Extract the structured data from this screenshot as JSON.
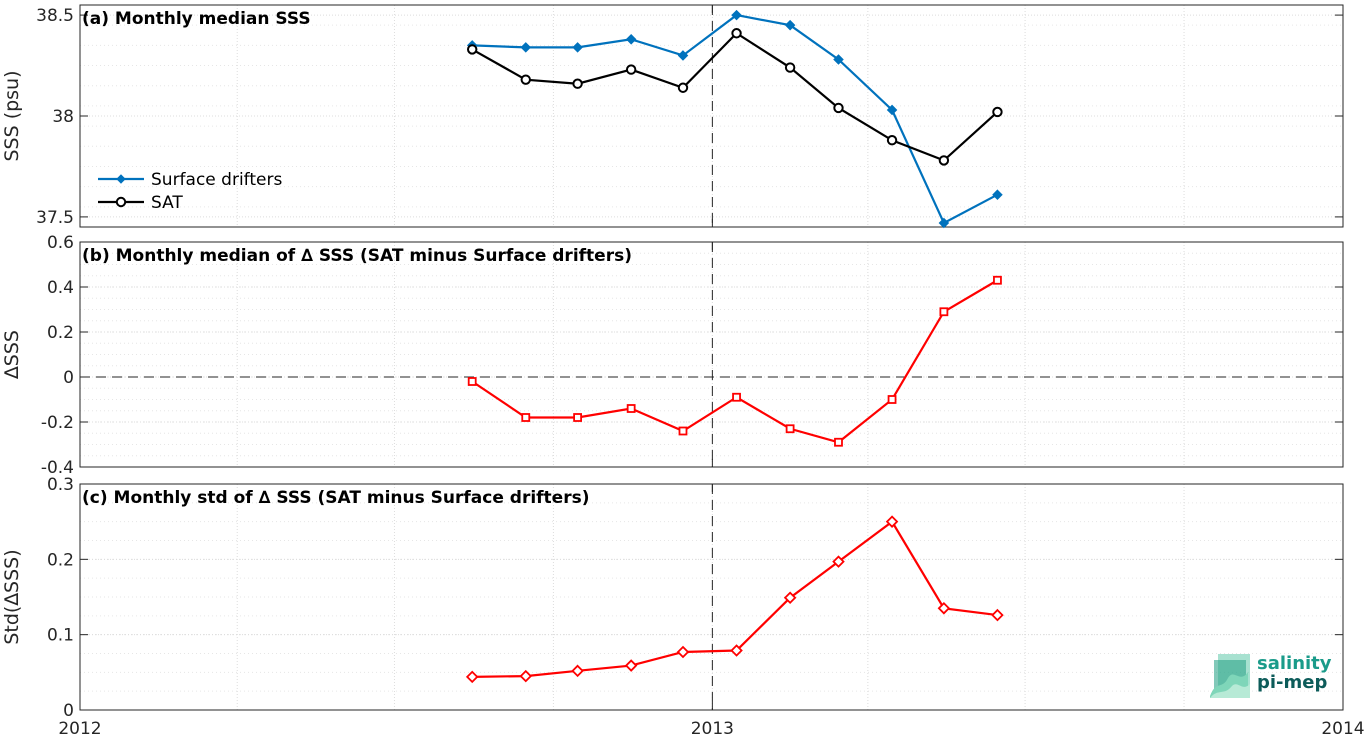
{
  "chart_data": [
    {
      "type": "line",
      "title": "(a) Monthly median SSS",
      "ylabel": "SSS (psu)",
      "xlabel": "",
      "xlim": [
        "2012-01-01",
        "2014-01-01"
      ],
      "ylim": [
        37.45,
        38.55
      ],
      "yticks": [
        37.5,
        38,
        38.5
      ],
      "ytick_labels": [
        "37.5",
        "38",
        "38.5"
      ],
      "x": [
        "2012-08-15",
        "2012-09-15",
        "2012-10-15",
        "2012-11-15",
        "2012-12-15",
        "2013-01-15",
        "2013-02-15",
        "2013-03-15",
        "2013-04-15",
        "2013-05-15",
        "2013-06-15",
        "2013-07-15"
      ],
      "series": [
        {
          "name": "Surface drifters",
          "color": "#0072BD",
          "marker": "diamond",
          "values": [
            38.35,
            38.34,
            38.34,
            38.38,
            38.3,
            38.5,
            38.45,
            38.28,
            38.03,
            37.47,
            37.61,
            null
          ]
        },
        {
          "name": "SAT",
          "color": "#000000",
          "marker": "circle",
          "values": [
            38.33,
            38.18,
            38.16,
            38.23,
            38.14,
            38.41,
            38.24,
            38.04,
            37.88,
            37.78,
            38.02,
            null
          ]
        }
      ],
      "legend_position": "lower-left",
      "grid": true,
      "vline": "2013-01-01"
    },
    {
      "type": "line",
      "title": "(b) Monthly median of ∆ SSS (SAT minus Surface drifters)",
      "ylabel": "∆SSS",
      "xlabel": "",
      "xlim": [
        "2012-01-01",
        "2014-01-01"
      ],
      "ylim": [
        -0.4,
        0.6
      ],
      "yticks": [
        -0.4,
        -0.2,
        0,
        0.2,
        0.4,
        0.6
      ],
      "ytick_labels": [
        "-0.4",
        "-0.2",
        "0",
        "0.2",
        "0.4",
        "0.6"
      ],
      "x": [
        "2012-08-15",
        "2012-09-15",
        "2012-10-15",
        "2012-11-15",
        "2012-12-15",
        "2013-01-15",
        "2013-02-15",
        "2013-03-15",
        "2013-04-15",
        "2013-05-15",
        "2013-06-15"
      ],
      "series": [
        {
          "name": "",
          "color": "#FF0000",
          "marker": "square",
          "values": [
            -0.02,
            -0.18,
            -0.18,
            -0.14,
            -0.24,
            -0.09,
            -0.23,
            -0.29,
            -0.1,
            0.29,
            0.43
          ]
        }
      ],
      "hline": 0,
      "grid": true,
      "vline": "2013-01-01"
    },
    {
      "type": "line",
      "title": "(c) Monthly std of ∆ SSS (SAT minus Surface drifters)",
      "ylabel": "Std(∆SSS)",
      "xlabel": "",
      "xlim": [
        "2012-01-01",
        "2014-01-01"
      ],
      "ylim": [
        0,
        0.3
      ],
      "yticks": [
        0,
        0.1,
        0.2,
        0.3
      ],
      "ytick_labels": [
        "0",
        "0.1",
        "0.2",
        "0.3"
      ],
      "x": [
        "2012-08-15",
        "2012-09-15",
        "2012-10-15",
        "2012-11-15",
        "2012-12-15",
        "2013-01-15",
        "2013-02-15",
        "2013-03-15",
        "2013-04-15",
        "2013-05-15",
        "2013-06-15"
      ],
      "xticks": [
        "2012-01-01",
        "2013-01-01",
        "2014-01-01"
      ],
      "xtick_labels": [
        "2012",
        "2013",
        "2014"
      ],
      "series": [
        {
          "name": "",
          "color": "#FF0000",
          "marker": "diamond",
          "values": [
            0.044,
            0.045,
            0.052,
            0.059,
            0.077,
            0.079,
            0.149,
            0.197,
            0.25,
            0.135,
            0.126
          ]
        }
      ],
      "grid": true,
      "vline": "2013-01-01"
    }
  ],
  "logo": {
    "line1": "salinity",
    "line2": "pi-mep",
    "color_text": "#1a9b8a",
    "color_dark": "#0d5c5a"
  }
}
